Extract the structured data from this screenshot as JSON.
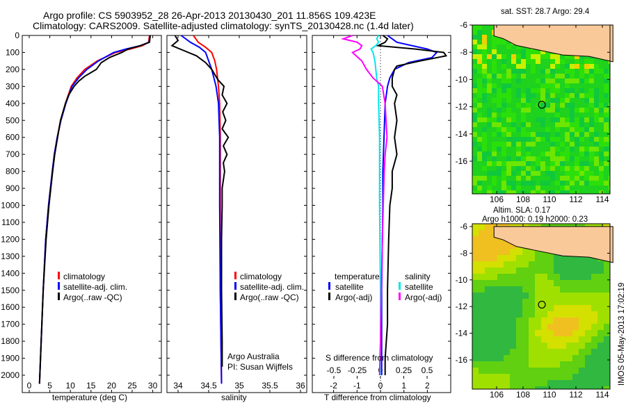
{
  "header": {
    "line1": "Argo profile: CS 5903952_28 26-Apr-2013 20130430_201 11.856S 109.423E",
    "line2": "Climatology: CARS2009. Satellite-adjusted climatology: synTS_20130428.nc (1.4d later)"
  },
  "colors": {
    "climatology": "#ff0000",
    "satellite": "#0000ff",
    "argo": "#000000",
    "sal_satellite": "#00e5ee",
    "sal_argo": "#ff00ff",
    "land": "#f9c99a"
  },
  "chart_data": [
    {
      "type": "line",
      "title": "",
      "xlabel": "temperature (deg C)",
      "ylabel": "",
      "xlim": [
        -1.7,
        32
      ],
      "ylim": [
        2050,
        0
      ],
      "xticks": [
        "0",
        "5",
        "10",
        "15",
        "20",
        "25",
        "30"
      ],
      "yticks": [
        "0",
        "100",
        "200",
        "300",
        "400",
        "500",
        "600",
        "700",
        "800",
        "900",
        "1000",
        "1100",
        "1200",
        "1300",
        "1400",
        "1500",
        "1600",
        "1700",
        "1800",
        "1900",
        "2000"
      ],
      "legend": [
        "climatology",
        "satellite-adj. clim.",
        "Argo(..raw -QC)"
      ],
      "series": [
        {
          "name": "climatology",
          "depth": [
            0,
            40,
            60,
            80,
            100,
            150,
            200,
            250,
            300,
            400,
            500,
            600,
            700,
            800,
            1000,
            1200,
            1500,
            1800,
            2050
          ],
          "values": [
            29.2,
            29,
            27.5,
            24.5,
            21,
            16.5,
            13.5,
            11.6,
            10.2,
            8.8,
            7.6,
            6.8,
            6.1,
            5.6,
            4.7,
            4,
            3.4,
            2.9,
            2.5
          ]
        },
        {
          "name": "satellite-adj. clim.",
          "depth": [
            0,
            40,
            60,
            80,
            100,
            150,
            200,
            250,
            300,
            400,
            500,
            600,
            700,
            800,
            1000,
            1200,
            1500,
            1800,
            2050
          ],
          "values": [
            29.4,
            29.1,
            27,
            23.5,
            20.5,
            16.8,
            14,
            12,
            10.4,
            8.9,
            7.7,
            6.8,
            6.1,
            5.6,
            4.7,
            4,
            3.4,
            2.9,
            2.5
          ]
        },
        {
          "name": "Argo(..raw -QC)",
          "depth": [
            0,
            40,
            60,
            80,
            100,
            130,
            160,
            200,
            240,
            270,
            300,
            350,
            400,
            500,
            600,
            700,
            800,
            1000,
            1200,
            1500,
            1800,
            2050
          ],
          "values": [
            29.4,
            29.2,
            27,
            24,
            22.5,
            19.5,
            17.5,
            16.3,
            13.5,
            12,
            10.9,
            9.6,
            8.8,
            7.6,
            6.9,
            6.2,
            5.7,
            4.8,
            4.1,
            3.4,
            2.9,
            2.5
          ]
        }
      ]
    },
    {
      "type": "line",
      "xlabel": "salinity",
      "xlim": [
        33.8,
        36.1
      ],
      "ylim": [
        2050,
        0
      ],
      "xticks": [
        "34",
        "34.5",
        "35",
        "35.5",
        "36"
      ],
      "legend": [
        "climatology",
        "satellite-adj. clim.",
        "Argo(..raw -QC)"
      ],
      "annotations": [
        "Argo Australia",
        "PI: Susan Wijffels"
      ],
      "series": [
        {
          "name": "climatology",
          "depth": [
            0,
            40,
            70,
            100,
            150,
            200,
            300,
            400,
            600,
            800,
            1000,
            1500,
            2050
          ],
          "values": [
            34.25,
            34.33,
            34.45,
            34.55,
            34.6,
            34.63,
            34.66,
            34.68,
            34.69,
            34.69,
            34.69,
            34.69,
            34.71
          ]
        },
        {
          "name": "satellite-adj. clim.",
          "depth": [
            0,
            40,
            70,
            100,
            150,
            200,
            300,
            400,
            600,
            800,
            1000,
            1500,
            2050
          ],
          "values": [
            34.05,
            34.2,
            34.35,
            34.45,
            34.5,
            34.55,
            34.62,
            34.66,
            34.68,
            34.68,
            34.68,
            34.69,
            34.71
          ]
        },
        {
          "name": "Argo(..raw -QC)",
          "depth": [
            0,
            30,
            60,
            90,
            120,
            160,
            200,
            260,
            300,
            350,
            400,
            450,
            500,
            550,
            600,
            650,
            700,
            750,
            800,
            900,
            1000,
            1200,
            1500,
            1800,
            1950
          ],
          "values": [
            33.95,
            34.0,
            33.9,
            34.1,
            34.3,
            34.45,
            34.55,
            34.65,
            34.75,
            34.72,
            34.8,
            34.73,
            34.78,
            34.72,
            34.82,
            34.74,
            34.8,
            34.74,
            34.76,
            34.72,
            34.72,
            34.71,
            34.71,
            34.72,
            34.72
          ]
        }
      ]
    },
    {
      "type": "line",
      "xlabel": "T difference from climatology",
      "xlabel2": "S difference from climatology",
      "xticks": [
        "-2",
        "-1",
        "0",
        "1",
        "2"
      ],
      "xticks2": [
        "-0.5",
        "-0.25",
        "0",
        "0.25",
        "0.5"
      ],
      "xlim": [
        -2.9,
        3
      ],
      "ylim": [
        2050,
        0
      ],
      "legend": {
        "temperature_title": "temperature",
        "salinity_title": "salinity",
        "temperature": [
          "satellite",
          "Argo(-adj)"
        ],
        "salinity": [
          "satellite",
          "Argo(-adj)"
        ]
      },
      "series": [
        {
          "name": "temperature satellite",
          "kind": "T",
          "depth": [
            0,
            20,
            40,
            80,
            100,
            130,
            160,
            200,
            250,
            300,
            400,
            600,
            800,
            1000,
            1500,
            2000
          ],
          "values": [
            0.3,
            0.5,
            0.7,
            2,
            2.4,
            2.2,
            1.2,
            0.6,
            0.4,
            0.3,
            0.2,
            0.15,
            0.1,
            0.1,
            0.05,
            0.05
          ]
        },
        {
          "name": "temperature Argo(-adj)",
          "kind": "T",
          "depth": [
            0,
            20,
            40,
            60,
            80,
            100,
            120,
            150,
            180,
            200,
            250,
            300,
            350,
            400,
            500,
            600,
            700,
            800,
            900,
            1000,
            1200,
            1500,
            1700,
            1900,
            2000
          ],
          "values": [
            0.1,
            0.3,
            0.2,
            -0.1,
            1.5,
            2.7,
            2.8,
            1.7,
            0.7,
            0.6,
            0.5,
            0.5,
            0.7,
            0.6,
            0.7,
            0.6,
            0.7,
            0.5,
            0.5,
            0.4,
            0.35,
            0.3,
            0.3,
            0.2,
            0.2
          ]
        },
        {
          "name": "salinity satellite",
          "kind": "S",
          "depth": [
            0,
            20,
            40,
            60,
            80,
            100,
            150,
            200,
            250,
            300,
            400,
            600,
            800,
            1000,
            1500,
            2000
          ],
          "values": [
            -0.02,
            -0.04,
            -0.02,
            -0.05,
            -0.1,
            -0.08,
            -0.06,
            -0.05,
            -0.04,
            -0.02,
            -0.02,
            -0.01,
            -0.01,
            -0.01,
            0,
            0
          ]
        },
        {
          "name": "salinity Argo(-adj)",
          "kind": "S",
          "depth": [
            0,
            20,
            40,
            60,
            80,
            100,
            150,
            200,
            250,
            300,
            400,
            500,
            600,
            700,
            800,
            1000,
            1200,
            1500,
            1800,
            2000
          ],
          "values": [
            -0.3,
            -0.4,
            -0.25,
            -0.2,
            -0.22,
            -0.3,
            -0.2,
            -0.15,
            -0.08,
            0.02,
            0.05,
            0.06,
            0.07,
            0.05,
            0.04,
            0.03,
            0.02,
            0.01,
            0,
            -0.01
          ]
        }
      ]
    }
  ],
  "maps": [
    {
      "title": "sat. SST: 28.7  Argo: 29.4",
      "lon_ticks": [
        "106",
        "108",
        "110",
        "112",
        "114"
      ],
      "lat_ticks": [
        "-6",
        "-8",
        "-10",
        "-12",
        "-14",
        "-16"
      ],
      "argo_lon": 109.423,
      "argo_lat": -11.856
    },
    {
      "title": "Altim. SLA: 0.17",
      "subtitle": "Argo h1000: 0.19 h2000: 0.23",
      "lon_ticks": [
        "106",
        "108",
        "110",
        "112",
        "114"
      ],
      "lat_ticks": [
        "-6",
        "-8",
        "-10",
        "-12",
        "-14",
        "-16"
      ],
      "argo_lon": 109.423,
      "argo_lat": -11.856
    }
  ],
  "footer": {
    "stamp": "IMOS 05-May-2013 17:02:19"
  }
}
